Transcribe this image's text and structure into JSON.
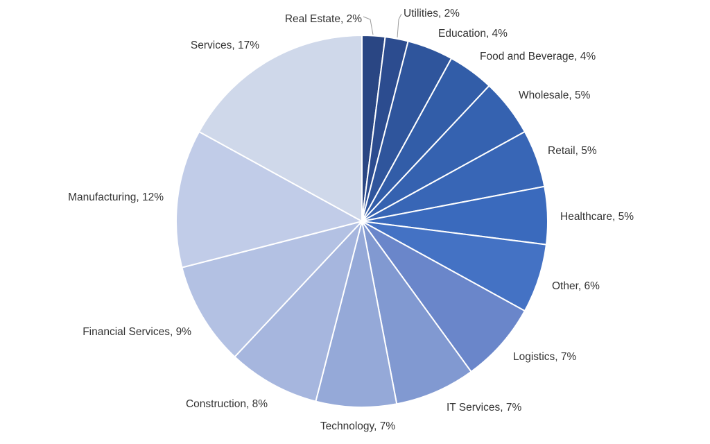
{
  "chart_data": {
    "type": "pie",
    "title": "",
    "slices": [
      {
        "label": "Real Estate",
        "value": 2,
        "display": "Real Estate, 2%",
        "color": "#2A4683"
      },
      {
        "label": "Utilities",
        "value": 2,
        "display": "Utilities, 2%",
        "color": "#2C4C8F"
      },
      {
        "label": "Education",
        "value": 4,
        "display": "Education, 4%",
        "color": "#2F559C"
      },
      {
        "label": "Food and Beverage",
        "value": 4,
        "display": "Food and Beverage, 4%",
        "color": "#325DA8"
      },
      {
        "label": "Wholesale",
        "value": 5,
        "display": "Wholesale, 5%",
        "color": "#3562B0"
      },
      {
        "label": "Retail",
        "value": 5,
        "display": "Retail, 5%",
        "color": "#3866B6"
      },
      {
        "label": "Healthcare",
        "value": 5,
        "display": "Healthcare, 5%",
        "color": "#3A6ABD"
      },
      {
        "label": "Other",
        "value": 6,
        "display": "Other, 6%",
        "color": "#4472C4"
      },
      {
        "label": "Logistics",
        "value": 7,
        "display": "Logistics, 7%",
        "color": "#6A86CA"
      },
      {
        "label": "IT Services",
        "value": 7,
        "display": "IT Services, 7%",
        "color": "#8199D1"
      },
      {
        "label": "Technology",
        "value": 7,
        "display": "Technology, 7%",
        "color": "#95A9D8"
      },
      {
        "label": "Construction",
        "value": 8,
        "display": "Construction, 8%",
        "color": "#A6B6DE"
      },
      {
        "label": "Financial Services",
        "value": 9,
        "display": "Financial Services, 9%",
        "color": "#B3C1E3"
      },
      {
        "label": "Manufacturing",
        "value": 12,
        "display": "Manufacturing, 12%",
        "color": "#C1CCE8"
      },
      {
        "label": "Services",
        "value": 17,
        "display": "Services, 17%",
        "color": "#CFD8EA"
      }
    ]
  }
}
